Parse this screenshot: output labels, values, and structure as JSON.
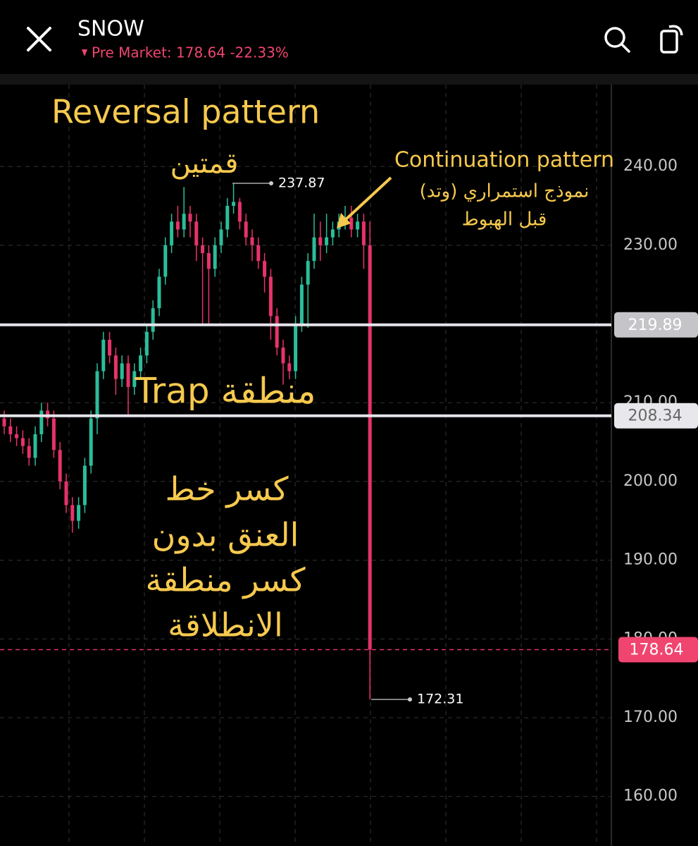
{
  "header": {
    "symbol": "SNOW",
    "status": "Pre Market: 178.64 -22.33%"
  },
  "chart_data": {
    "type": "candlestick",
    "open": [
      208,
      207,
      206,
      205.5,
      204.5,
      203,
      206,
      209,
      208,
      204,
      200,
      197,
      195,
      197,
      202,
      208,
      214,
      218,
      216,
      213,
      215,
      212,
      214,
      216,
      219,
      222,
      226,
      230,
      233,
      232,
      234,
      233,
      230,
      229,
      227,
      230,
      232,
      235,
      235.5,
      233,
      231,
      230,
      228,
      226,
      221,
      217,
      215,
      214,
      220,
      225,
      228,
      231,
      230,
      231,
      232,
      233,
      233.5,
      232,
      233,
      230
    ],
    "high": [
      209,
      208,
      207,
      206.5,
      205.5,
      207,
      210,
      210,
      209,
      205,
      201,
      198,
      198,
      203,
      209,
      215,
      219,
      219,
      217,
      216,
      216,
      215,
      217,
      220,
      223,
      227,
      231,
      234,
      235,
      237.4,
      235,
      234,
      231,
      230,
      231,
      233,
      236,
      237.87,
      236,
      234,
      232,
      231,
      229,
      227,
      222,
      218,
      216,
      221,
      226,
      229,
      234,
      233,
      234,
      233,
      234,
      235,
      235,
      234,
      234,
      233
    ],
    "low": [
      206,
      205,
      204.5,
      203.5,
      202,
      202,
      205,
      207,
      203,
      199,
      196,
      193.5,
      194,
      196,
      201,
      206,
      213,
      215,
      211,
      212,
      208.5,
      211,
      213,
      215,
      218,
      221,
      225,
      229,
      231,
      231,
      231,
      228,
      220,
      220,
      226,
      229,
      231,
      234,
      232,
      230,
      228,
      227,
      224,
      218,
      216,
      212.3,
      213,
      213,
      219,
      219.5,
      227,
      228,
      229,
      230,
      231,
      232,
      231,
      231,
      227,
      172.31
    ],
    "close": [
      207,
      206,
      205.5,
      204.5,
      203,
      206,
      209,
      208,
      204,
      200,
      197,
      195,
      197,
      202,
      208,
      214,
      218,
      216,
      213,
      215,
      212,
      214,
      216,
      219,
      222,
      226,
      230,
      233,
      232,
      234,
      233,
      230,
      229,
      227,
      230,
      232,
      235,
      235.5,
      233,
      231,
      230,
      228,
      226,
      221,
      217,
      215,
      214,
      220,
      225,
      228,
      231,
      230,
      231,
      232,
      233,
      233.5,
      232,
      233,
      230,
      178.64
    ],
    "up_color": "#2bbd9a",
    "down_color": "#e5336a",
    "ylim": [
      153.7,
      250.4
    ],
    "yticks": [
      {
        "value": 160,
        "label": "160.00"
      },
      {
        "value": 170,
        "label": "170.00"
      },
      {
        "value": 180,
        "label": "180.00"
      },
      {
        "value": 190,
        "label": "190.00"
      },
      {
        "value": 200,
        "label": "200.00"
      },
      {
        "value": 210,
        "label": "210.00"
      },
      {
        "value": 220,
        "label": "220.00"
      },
      {
        "value": 230,
        "label": "230.00"
      },
      {
        "value": 240,
        "label": "240.00"
      }
    ],
    "grid": true,
    "price_lines": [
      219.89,
      208.34
    ],
    "current_price": 178.64,
    "high_marker": 237.87,
    "low_marker": 172.31,
    "annotations": [
      "Reversal pattern",
      "قمتين",
      "Continuation pattern",
      "نموذج استمراري (وتد)",
      "قبل الهبوط",
      "منطقة Trap",
      "كسر خط",
      "العنق بدون",
      "كسر منطقة",
      "الانطلاقة"
    ]
  }
}
